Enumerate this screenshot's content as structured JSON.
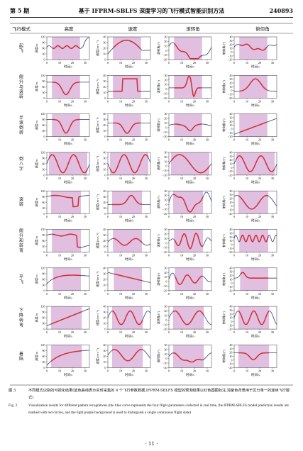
{
  "header": {
    "issue": "第 5 期",
    "title": "基于 IFPRM-SBLFS 深度学习的飞行模式智能识别方法",
    "article_no": "240893"
  },
  "figure": {
    "col_titles": [
      "飞行模式",
      "高度",
      "速度",
      "滚转角",
      "俯仰角"
    ],
    "rows": [
      {
        "mode": "起飞"
      },
      {
        "mode": "爬升与滚转"
      },
      {
        "mode": "半滚倒转"
      },
      {
        "mode": "倒八字"
      },
      {
        "mode": "滚转"
      },
      {
        "mode": "爬升和转弯"
      },
      {
        "mode": "平飞"
      },
      {
        "mode": "下降转弯"
      },
      {
        "mode": "着陆"
      }
    ],
    "xlabel": "时间/s",
    "ylabels": [
      "高度/m",
      "速度/(m·s⁻¹)",
      "滚转角/(°)",
      "俯仰角/(°)"
    ],
    "yticks": [
      [
        "120",
        "90",
        "60",
        "30",
        "0"
      ],
      [
        "40",
        "30",
        "20",
        "10",
        "0"
      ],
      [
        "30",
        "20",
        "10",
        "0",
        "−10",
        "−20"
      ],
      [
        "40",
        "30",
        "20",
        "10",
        "0",
        "−10",
        "−20"
      ]
    ],
    "xticks": [
      "0",
      "10",
      "20",
      "30"
    ],
    "colors": {
      "signal": "#2b3f8c",
      "prediction": "#d8302f",
      "background": "#dcb4dc"
    }
  },
  "caption": {
    "cn_label": "图 3",
    "cn_text": "不同模式识别的可视化结果(蓝色曲线表示实时采集的 4 个飞行参数数据,IFPRM-SBLFS 模型的预测结果以红色圆圈标注,浅紫色背景用于区分单一的连续飞行模式)",
    "en_label": "Fig. 3",
    "en_text": "Visualization results for different pattern recognitions (the blue curve represents the four flight parameters collected in real time, the IFPRM-SBLFS model prediction results are marked with red circles, and the light purple background is used to distinguish a single continuous flight state)"
  },
  "page_number": "· 11 ·"
}
